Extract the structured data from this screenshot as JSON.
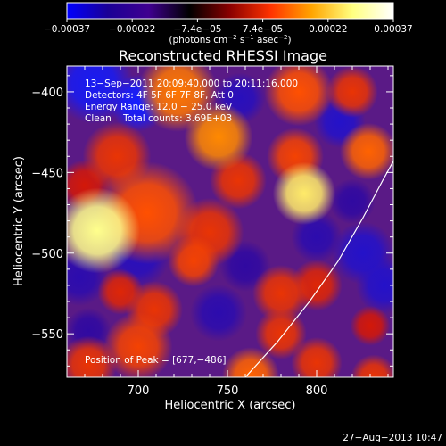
{
  "chart_data": {
    "type": "heatmap",
    "title": "Reconstructed RHESSI Image",
    "xlabel": "Heliocentric X (arcsec)",
    "ylabel": "Heliocentric Y (arcsec)",
    "xlim": [
      660,
      843
    ],
    "ylim": [
      -577,
      -384
    ],
    "x_ticks": [
      {
        "value": 700,
        "label": "700"
      },
      {
        "value": 750,
        "label": "750"
      },
      {
        "value": 800,
        "label": "800"
      }
    ],
    "y_ticks": [
      {
        "value": -400,
        "label": "−400"
      },
      {
        "value": -450,
        "label": "−450"
      },
      {
        "value": -500,
        "label": "−500"
      },
      {
        "value": -550,
        "label": "−550"
      }
    ],
    "colorbar": {
      "min": -0.00037,
      "max": 0.00037,
      "tick_labels": [
        "−0.00037",
        "−0.00022",
        "−7.4e−05",
        "7.4e−05",
        "0.00022",
        "0.00037"
      ],
      "unit_parts": [
        "(photons cm",
        "−2",
        " s",
        "−1",
        " asec",
        "−2",
        ")"
      ],
      "colors": [
        "#0000ff",
        "#1a0096",
        "#3f0090",
        "#000000",
        "#8b0000",
        "#ff3300",
        "#ffa500",
        "#ffff80",
        "#ffffff"
      ]
    },
    "info_lines": [
      "13−Sep−2011 20:09:40.000 to 20:11:16.000",
      "Detectors: 4F 5F 6F 7F 8F, Att 0",
      "Energy Range: 12.0 − 25.0 keV",
      "Clean    Total counts: 3.69E+03"
    ],
    "peak_text": "Position of Peak = [677,−486]",
    "peak": [
      677,
      -486
    ],
    "limb_curve": [
      [
        760,
        -577
      ],
      [
        778,
        -555
      ],
      [
        796,
        -530
      ],
      [
        812,
        -505
      ],
      [
        826,
        -478
      ],
      [
        837,
        -455
      ],
      [
        843,
        -443
      ]
    ],
    "blobs": [
      {
        "x": 677,
        "y": -486,
        "v": 1.0,
        "r": 15
      },
      {
        "x": 705,
        "y": -475,
        "v": 0.55,
        "r": 18
      },
      {
        "x": 740,
        "y": -487,
        "v": 0.45,
        "r": 12
      },
      {
        "x": 793,
        "y": -463,
        "v": 0.95,
        "r": 11
      },
      {
        "x": 788,
        "y": -440,
        "v": 0.5,
        "r": 10
      },
      {
        "x": 722,
        "y": -400,
        "v": 0.65,
        "r": 14
      },
      {
        "x": 745,
        "y": -428,
        "v": 0.7,
        "r": 12
      },
      {
        "x": 790,
        "y": -400,
        "v": 0.55,
        "r": 12
      },
      {
        "x": 829,
        "y": -437,
        "v": 0.6,
        "r": 10
      },
      {
        "x": 820,
        "y": -400,
        "v": 0.45,
        "r": 9
      },
      {
        "x": 688,
        "y": -440,
        "v": 0.45,
        "r": 12
      },
      {
        "x": 670,
        "y": -458,
        "v": 0.35,
        "r": 9
      },
      {
        "x": 731,
        "y": -505,
        "v": 0.5,
        "r": 9
      },
      {
        "x": 709,
        "y": -535,
        "v": 0.45,
        "r": 10
      },
      {
        "x": 700,
        "y": -558,
        "v": 0.5,
        "r": 12
      },
      {
        "x": 672,
        "y": -569,
        "v": 0.45,
        "r": 10
      },
      {
        "x": 690,
        "y": -524,
        "v": 0.4,
        "r": 8
      },
      {
        "x": 780,
        "y": -525,
        "v": 0.45,
        "r": 10
      },
      {
        "x": 780,
        "y": -550,
        "v": 0.45,
        "r": 9
      },
      {
        "x": 800,
        "y": -520,
        "v": 0.4,
        "r": 9
      },
      {
        "x": 763,
        "y": -576,
        "v": 0.6,
        "r": 10
      },
      {
        "x": 800,
        "y": -568,
        "v": 0.45,
        "r": 9
      },
      {
        "x": 832,
        "y": -577,
        "v": 0.45,
        "r": 8
      },
      {
        "x": 830,
        "y": -545,
        "v": 0.35,
        "r": 7
      },
      {
        "x": 756,
        "y": -455,
        "v": 0.45,
        "r": 10
      },
      {
        "x": 675,
        "y": -395,
        "v": -0.45,
        "r": 14
      },
      {
        "x": 700,
        "y": -407,
        "v": -0.5,
        "r": 10
      },
      {
        "x": 757,
        "y": -404,
        "v": -0.25,
        "r": 9
      },
      {
        "x": 813,
        "y": -419,
        "v": -0.3,
        "r": 9
      },
      {
        "x": 700,
        "y": -502,
        "v": -0.25,
        "r": 11
      },
      {
        "x": 667,
        "y": -515,
        "v": -0.2,
        "r": 10
      },
      {
        "x": 826,
        "y": -500,
        "v": -0.3,
        "r": 11
      },
      {
        "x": 838,
        "y": -520,
        "v": -0.3,
        "r": 10
      },
      {
        "x": 800,
        "y": -490,
        "v": -0.2,
        "r": 9
      },
      {
        "x": 745,
        "y": -537,
        "v": -0.2,
        "r": 10
      },
      {
        "x": 820,
        "y": -468,
        "v": -0.15,
        "r": 8
      },
      {
        "x": 672,
        "y": -548,
        "v": -0.15,
        "r": 8
      },
      {
        "x": 760,
        "y": -508,
        "v": -0.15,
        "r": 9
      }
    ]
  },
  "footer_timestamp": "27−Aug−2013 10:47"
}
